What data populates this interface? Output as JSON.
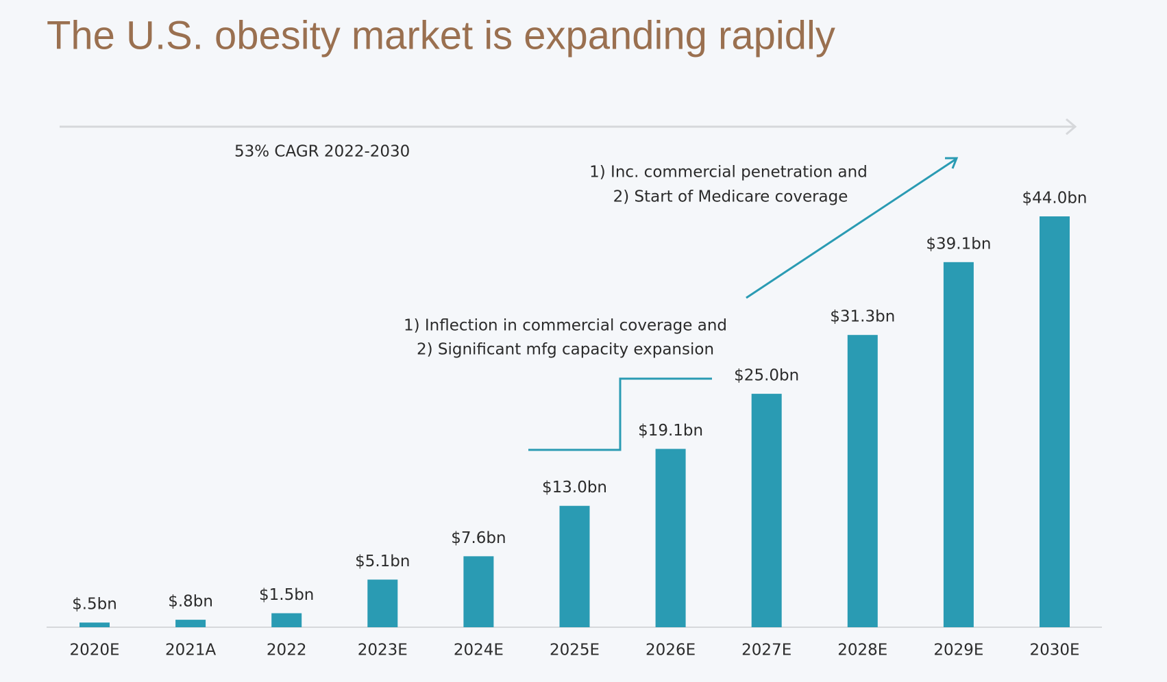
{
  "chart_data": {
    "type": "bar",
    "title": "The U.S. obesity market is expanding rapidly",
    "categories": [
      "2020E",
      "2021A",
      "2022",
      "2023E",
      "2024E",
      "2025E",
      "2026E",
      "2027E",
      "2028E",
      "2029E",
      "2030E"
    ],
    "values": [
      0.5,
      0.8,
      1.5,
      5.1,
      7.6,
      13.0,
      19.1,
      25.0,
      31.3,
      39.1,
      44.0
    ],
    "value_labels": [
      "$.5bn",
      "$.8bn",
      "$1.5bn",
      "$5.1bn",
      "$7.6bn",
      "$13.0bn",
      "$19.1bn",
      "$25.0bn",
      "$31.3bn",
      "$39.1bn",
      "$44.0bn"
    ],
    "color": "#2a9bb3",
    "annotations": {
      "cagr": "53% CAGR 2022-2030",
      "inflection": [
        "1) Inflection in commercial coverage and",
        "2) Significant mfg capacity expansion"
      ],
      "medicare": [
        "1) Inc. commercial penetration and",
        "2) Start of Medicare coverage"
      ]
    }
  }
}
